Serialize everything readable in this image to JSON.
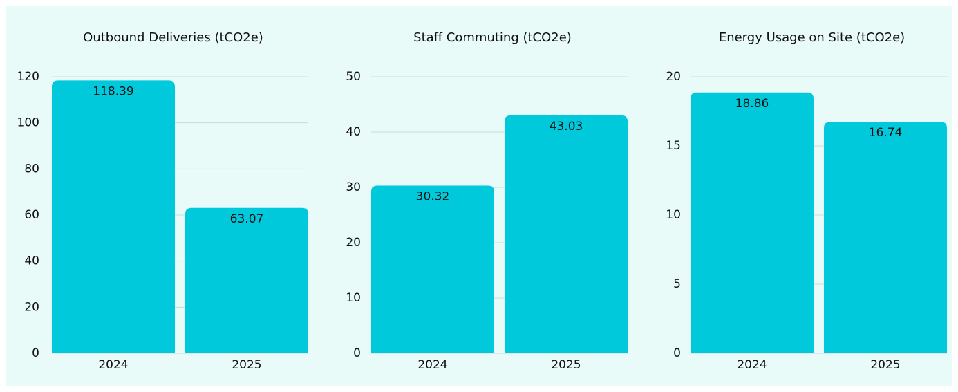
{
  "chart_data": [
    {
      "type": "bar",
      "title": "Outbound Deliveries (tCO2e)",
      "categories": [
        "2024",
        "2025"
      ],
      "values": [
        118.39,
        63.07
      ],
      "color": "#00c9dc",
      "ylim": [
        0,
        120
      ],
      "yticks": [
        0,
        20,
        40,
        60,
        80,
        100,
        120
      ],
      "grid": true
    },
    {
      "type": "bar",
      "title": "Staff Commuting (tCO2e)",
      "categories": [
        "2024",
        "2025"
      ],
      "values": [
        30.32,
        43.03
      ],
      "color": "#00c9dc",
      "ylim": [
        0,
        50
      ],
      "yticks": [
        0,
        10,
        20,
        30,
        40,
        50
      ],
      "grid": true
    },
    {
      "type": "bar",
      "title": "Energy Usage on Site (tCO2e)",
      "categories": [
        "2024",
        "2025"
      ],
      "values": [
        18.86,
        16.74
      ],
      "color": "#00c9dc",
      "ylim": [
        0,
        20
      ],
      "yticks": [
        0,
        5,
        10,
        15,
        20
      ],
      "grid": true
    }
  ]
}
